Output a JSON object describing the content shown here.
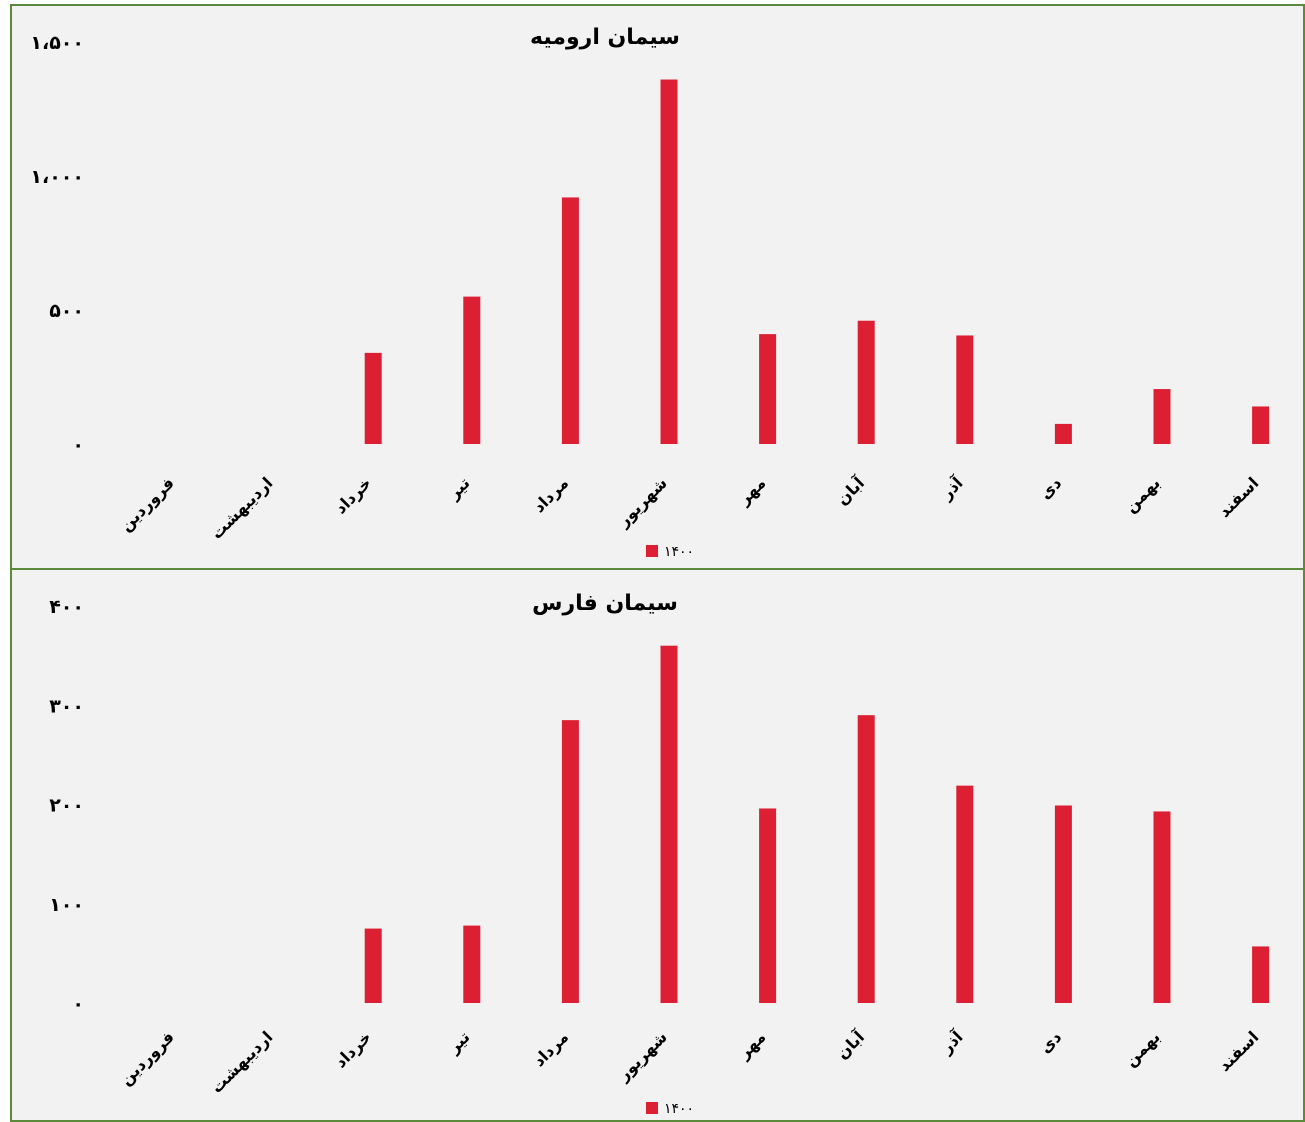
{
  "chart_data": [
    {
      "type": "bar",
      "title": "سیمان ارومیه",
      "categories": [
        "فروردین",
        "اردیبهشت",
        "خرداد",
        "تیر",
        "مرداد",
        "شهریور",
        "مهر",
        "آبان",
        "آذر",
        "دی",
        "بهمن",
        "اسفند"
      ],
      "series": [
        {
          "name": "۱۴۰۰",
          "values": [
            0,
            0,
            340,
            550,
            920,
            1360,
            410,
            460,
            405,
            75,
            205,
            140
          ]
        }
      ],
      "ylim": [
        0,
        1500
      ],
      "yticks": [
        0,
        500,
        1000,
        1500
      ],
      "ytick_labels": [
        "۰",
        "۵۰۰",
        "۱،۰۰۰",
        "۱،۵۰۰"
      ],
      "color": "#dc1f32",
      "grid": false,
      "legend": "bottom"
    },
    {
      "type": "bar",
      "title": "سیمان فارس",
      "categories": [
        "فروردین",
        "اردیبهشت",
        "خرداد",
        "تیر",
        "مرداد",
        "شهریور",
        "مهر",
        "آبان",
        "آذر",
        "دی",
        "بهمن",
        "اسفند"
      ],
      "series": [
        {
          "name": "۱۴۰۰",
          "values": [
            0,
            0,
            75,
            78,
            285,
            360,
            196,
            290,
            219,
            199,
            193,
            57
          ]
        }
      ],
      "ylim": [
        0,
        400
      ],
      "yticks": [
        0,
        100,
        200,
        300,
        400
      ],
      "ytick_labels": [
        "۰",
        "۱۰۰",
        "۲۰۰",
        "۳۰۰",
        "۴۰۰"
      ],
      "color": "#dc1f32",
      "grid": false,
      "legend": "bottom"
    }
  ]
}
